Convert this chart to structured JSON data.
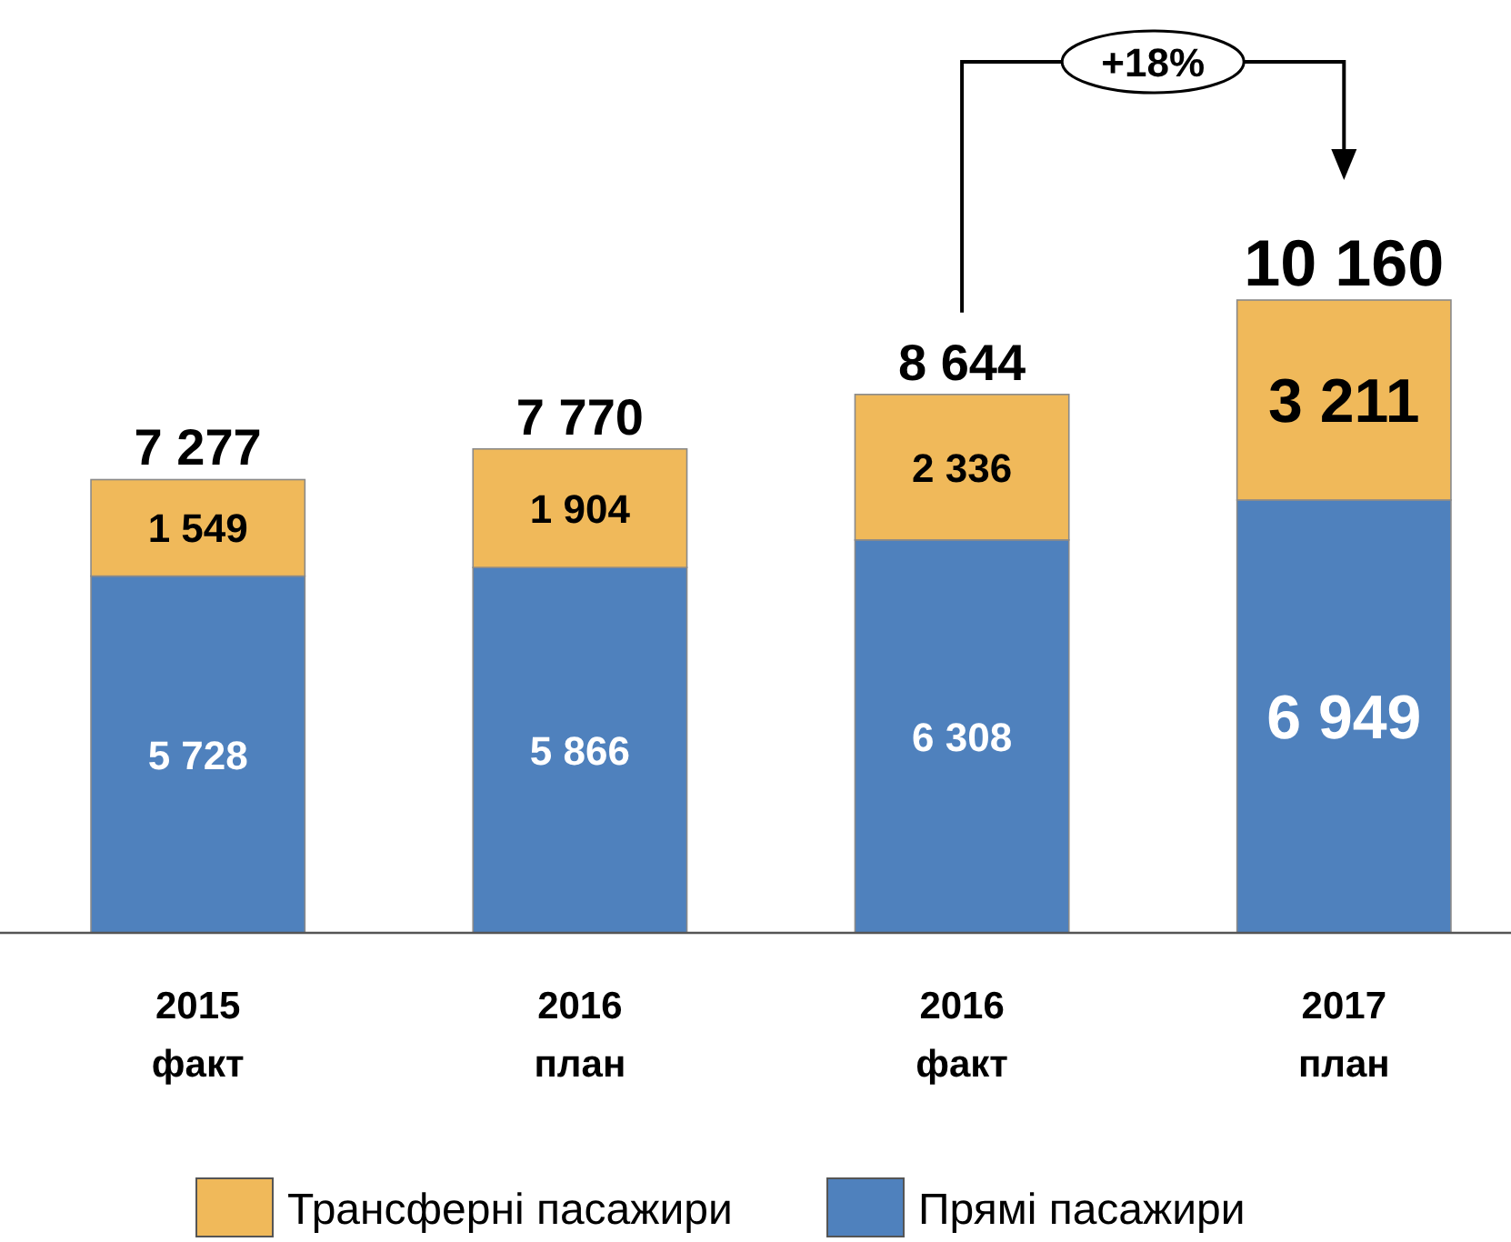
{
  "chart_data": {
    "type": "bar",
    "stacked": true,
    "categories": [
      "2015\nфакт",
      "2016\nплан",
      "2016\nфакт",
      "2017\nплан"
    ],
    "series": [
      {
        "name": "Прямі пасажири",
        "color": "#4f81bd",
        "values": [
          5728,
          5866,
          6308,
          6949
        ],
        "value_labels": [
          "5 728",
          "5 866",
          "6 308",
          "6 949"
        ]
      },
      {
        "name": "Трансферні пасажири",
        "color": "#f0b95a",
        "values": [
          1549,
          1904,
          2336,
          3211
        ],
        "value_labels": [
          "1 549",
          "1 904",
          "2 336",
          "3 211"
        ]
      }
    ],
    "totals": [
      "7 277",
      "7 770",
      "8 644",
      "10 160"
    ],
    "annotations": [
      "+18%"
    ],
    "legend": "bottom"
  }
}
